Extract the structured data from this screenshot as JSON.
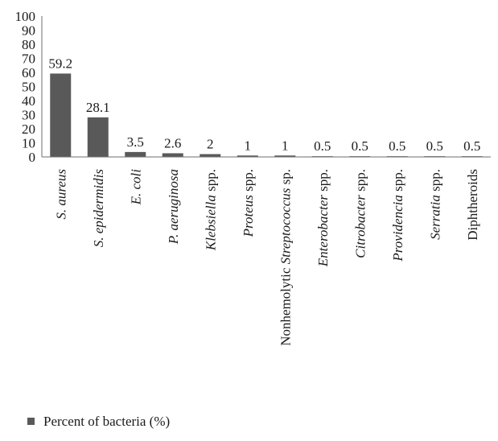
{
  "chart_data": {
    "type": "bar",
    "title": "",
    "xlabel": "",
    "ylabel": "",
    "ylim": [
      0,
      100
    ],
    "yticks": [
      0,
      10,
      20,
      30,
      40,
      50,
      60,
      70,
      80,
      90,
      100
    ],
    "grid": false,
    "legend_position": "bottom-left",
    "bar_color": "#595959",
    "categories": [
      {
        "parts": [
          {
            "text": "S. aureus",
            "italic": true
          }
        ]
      },
      {
        "parts": [
          {
            "text": "S. epidermidis",
            "italic": true
          }
        ]
      },
      {
        "parts": [
          {
            "text": "E. coli",
            "italic": true
          }
        ]
      },
      {
        "parts": [
          {
            "text": "P. aeruginosa",
            "italic": true
          }
        ]
      },
      {
        "parts": [
          {
            "text": "Klebsiella",
            "italic": true
          },
          {
            "text": " spp.",
            "italic": false
          }
        ]
      },
      {
        "parts": [
          {
            "text": "Proteus",
            "italic": true
          },
          {
            "text": " spp.",
            "italic": false
          }
        ]
      },
      {
        "parts": [
          {
            "text": "Nonhemolytic ",
            "italic": false
          },
          {
            "text": "Streptococcus",
            "italic": true
          },
          {
            "text": " sp.",
            "italic": false
          }
        ]
      },
      {
        "parts": [
          {
            "text": "Enterobacter",
            "italic": true
          },
          {
            "text": " spp.",
            "italic": false
          }
        ]
      },
      {
        "parts": [
          {
            "text": "Citrobacter",
            "italic": true
          },
          {
            "text": " spp.",
            "italic": false
          }
        ]
      },
      {
        "parts": [
          {
            "text": "Providencia",
            "italic": true
          },
          {
            "text": " spp.",
            "italic": false
          }
        ]
      },
      {
        "parts": [
          {
            "text": "Serratia",
            "italic": true
          },
          {
            "text": " spp.",
            "italic": false
          }
        ]
      },
      {
        "parts": [
          {
            "text": "Diphtheroids",
            "italic": false
          }
        ]
      }
    ],
    "series": [
      {
        "name": "Percent of bacteria (%)",
        "values": [
          59.2,
          28.1,
          3.5,
          2.6,
          2,
          1,
          1,
          0.5,
          0.5,
          0.5,
          0.5,
          0.5
        ],
        "labels": [
          "59.2",
          "28.1",
          "3.5",
          "2.6",
          "2",
          "1",
          "1",
          "0.5",
          "0.5",
          "0.5",
          "0.5",
          "0.5"
        ]
      }
    ]
  }
}
